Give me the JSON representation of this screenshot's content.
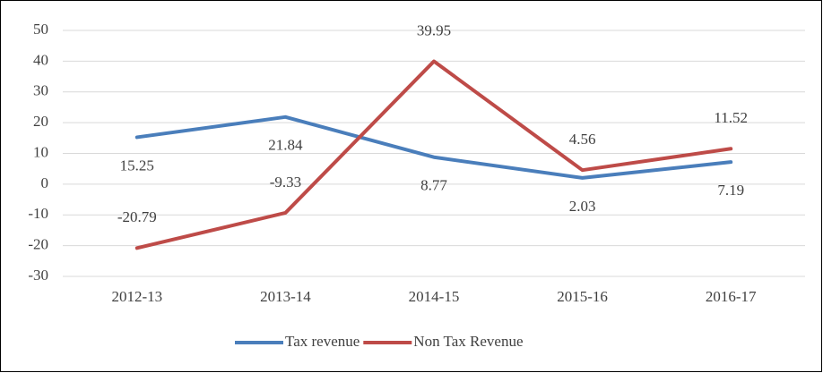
{
  "chart_data": {
    "type": "line",
    "categories": [
      "2012-13",
      "2013-14",
      "2014-15",
      "2015-16",
      "2016-17"
    ],
    "series": [
      {
        "name": "Tax revenue",
        "color": "#4a7ebb",
        "values": [
          15.25,
          21.84,
          8.77,
          2.03,
          7.19
        ]
      },
      {
        "name": "Non Tax Revenue",
        "color": "#be4b48",
        "values": [
          -20.79,
          -9.33,
          39.95,
          4.56,
          11.52
        ]
      }
    ],
    "ylim": [
      -30,
      50
    ],
    "yticks": [
      -30,
      -20,
      -10,
      0,
      10,
      20,
      30,
      40,
      50
    ],
    "grid": true,
    "legend": "bottom"
  }
}
